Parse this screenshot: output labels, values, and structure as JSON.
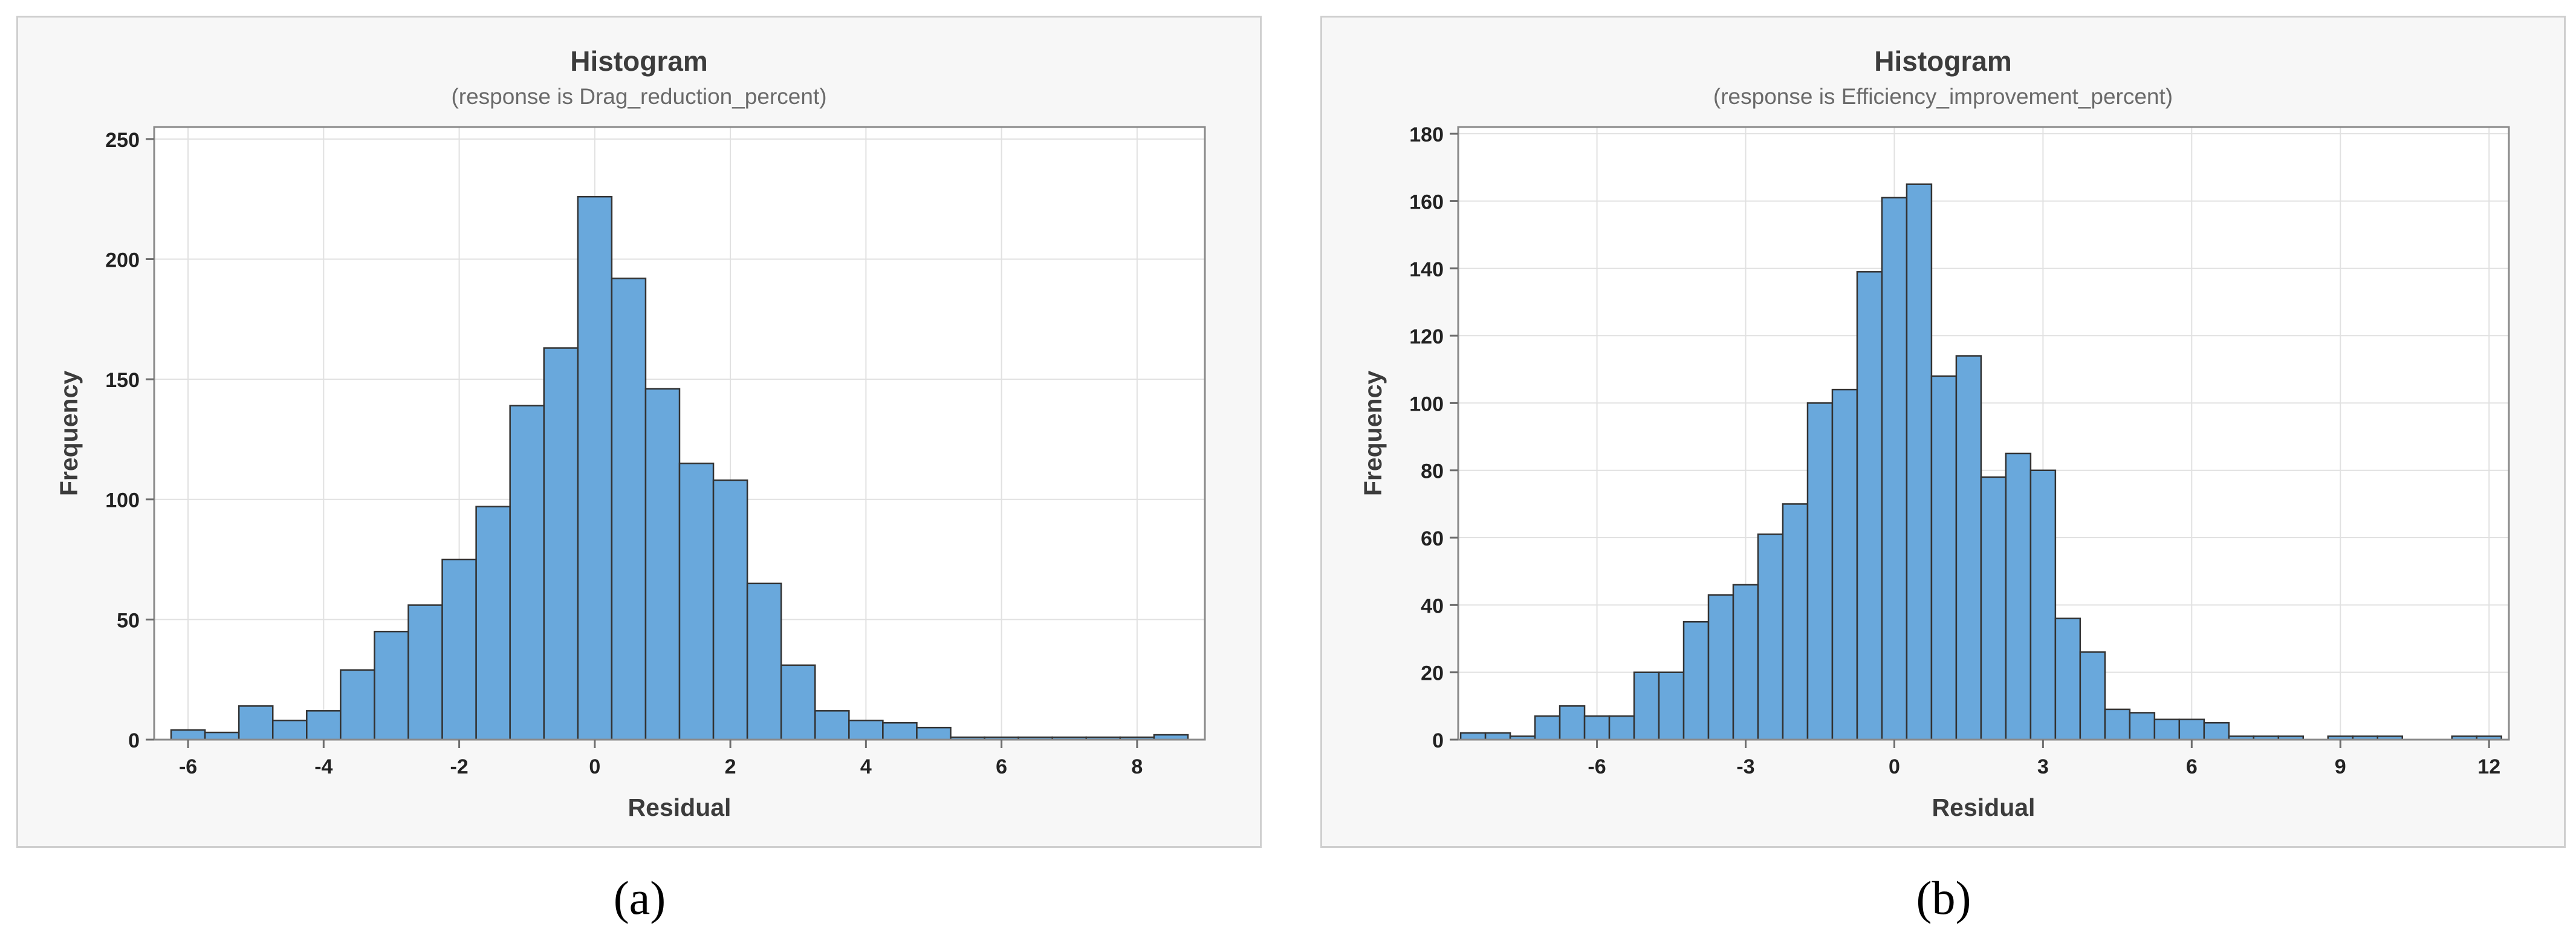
{
  "chart_data": [
    {
      "type": "bar",
      "title": "Histogram",
      "subtitle": "(response is Drag_reduction_percent)",
      "xlabel": "Residual",
      "ylabel": "Frequency",
      "xlim": [
        -6.5,
        9.0
      ],
      "ylim": [
        0,
        255
      ],
      "x_ticks": [
        -6,
        -4,
        -2,
        0,
        2,
        4,
        6,
        8
      ],
      "y_ticks": [
        0,
        50,
        100,
        150,
        200,
        250
      ],
      "bin_width": 0.5,
      "bin_centers": [
        -6.0,
        -5.5,
        -5.0,
        -4.5,
        -4.0,
        -3.5,
        -3.0,
        -2.5,
        -2.0,
        -1.5,
        -1.0,
        -0.5,
        0.0,
        0.5,
        1.0,
        1.5,
        2.0,
        2.5,
        3.0,
        3.5,
        4.0,
        4.5,
        5.0,
        5.5,
        6.0,
        6.5,
        7.0,
        7.5,
        8.0,
        8.5
      ],
      "values": [
        4,
        3,
        14,
        8,
        12,
        29,
        45,
        56,
        75,
        97,
        139,
        163,
        226,
        192,
        146,
        115,
        108,
        65,
        31,
        12,
        8,
        7,
        5,
        1,
        1,
        1,
        1,
        1,
        1,
        2
      ],
      "grid": true,
      "bar_color": "#69a8dc",
      "edge_color": "#333333",
      "caption": "(a)"
    },
    {
      "type": "bar",
      "title": "Histogram",
      "subtitle": "(response is Efficiency_improvement_percent)",
      "xlabel": "Residual",
      "ylabel": "Frequency",
      "xlim": [
        -8.8,
        12.4
      ],
      "ylim": [
        0,
        182
      ],
      "x_ticks": [
        -6,
        -3,
        0,
        3,
        6,
        9,
        12
      ],
      "y_ticks": [
        0,
        20,
        40,
        60,
        80,
        100,
        120,
        140,
        160,
        180
      ],
      "bin_width": 0.5,
      "bin_centers": [
        -8.5,
        -8.0,
        -7.5,
        -7.0,
        -6.5,
        -6.0,
        -5.5,
        -5.0,
        -4.5,
        -4.0,
        -3.5,
        -3.0,
        -2.5,
        -2.0,
        -1.5,
        -1.0,
        -0.5,
        0.0,
        0.5,
        1.0,
        1.5,
        2.0,
        2.5,
        3.0,
        3.5,
        4.0,
        4.5,
        5.0,
        5.5,
        6.0,
        6.5,
        7.0,
        7.5,
        8.0,
        8.5,
        9.0,
        9.5,
        10.0,
        10.5,
        11.0,
        11.5,
        12.0
      ],
      "values": [
        2,
        2,
        1,
        7,
        10,
        7,
        7,
        20,
        20,
        35,
        43,
        46,
        61,
        70,
        100,
        104,
        139,
        161,
        165,
        108,
        114,
        78,
        85,
        80,
        36,
        26,
        9,
        8,
        6,
        6,
        5,
        1,
        1,
        1,
        0,
        1,
        1,
        1,
        0,
        0,
        1,
        1
      ],
      "grid": true,
      "bar_color": "#69a8dc",
      "edge_color": "#333333",
      "caption": "(b)"
    }
  ]
}
